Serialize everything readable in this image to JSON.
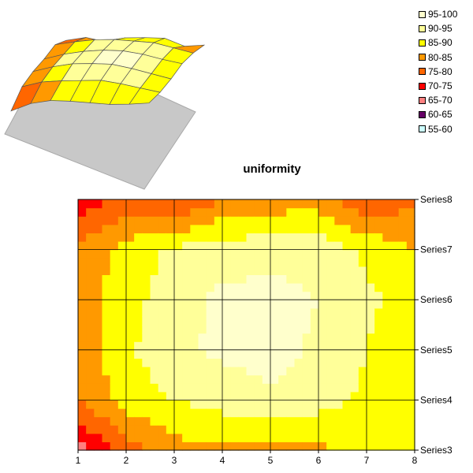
{
  "chart_data": {
    "type": "contour",
    "title": "uniformity",
    "x_categories": [
      "1",
      "2",
      "3",
      "4",
      "5",
      "6",
      "7",
      "8"
    ],
    "y_series": [
      "Series3",
      "Series4",
      "Series5",
      "Series6",
      "Series7",
      "Series8"
    ],
    "band_values": [
      [
        68,
        78,
        83,
        84,
        84,
        84,
        86,
        89
      ],
      [
        80,
        87,
        90,
        92,
        94,
        92,
        89,
        86
      ],
      [
        82,
        89,
        94,
        96,
        97,
        94,
        90,
        86
      ],
      [
        81,
        88,
        93,
        96,
        97,
        95,
        91,
        88
      ],
      [
        82,
        87,
        91,
        93,
        93,
        93,
        89,
        85
      ],
      [
        72,
        77,
        74,
        80,
        82,
        83,
        76,
        79
      ]
    ],
    "legend": [
      {
        "label": "95-100",
        "color": "#ffffcc"
      },
      {
        "label": "90-95",
        "color": "#ffff99"
      },
      {
        "label": "85-90",
        "color": "#ffff00"
      },
      {
        "label": "80-85",
        "color": "#ff9900"
      },
      {
        "label": "75-80",
        "color": "#ff6600"
      },
      {
        "label": "70-75",
        "color": "#ff0000"
      },
      {
        "label": "65-70",
        "color": "#ff8080"
      },
      {
        "label": "60-65",
        "color": "#660066"
      },
      {
        "label": "55-60",
        "color": "#ccffff"
      }
    ],
    "grid": true,
    "legend_placement": "top-right",
    "inset": "3d-surface"
  }
}
